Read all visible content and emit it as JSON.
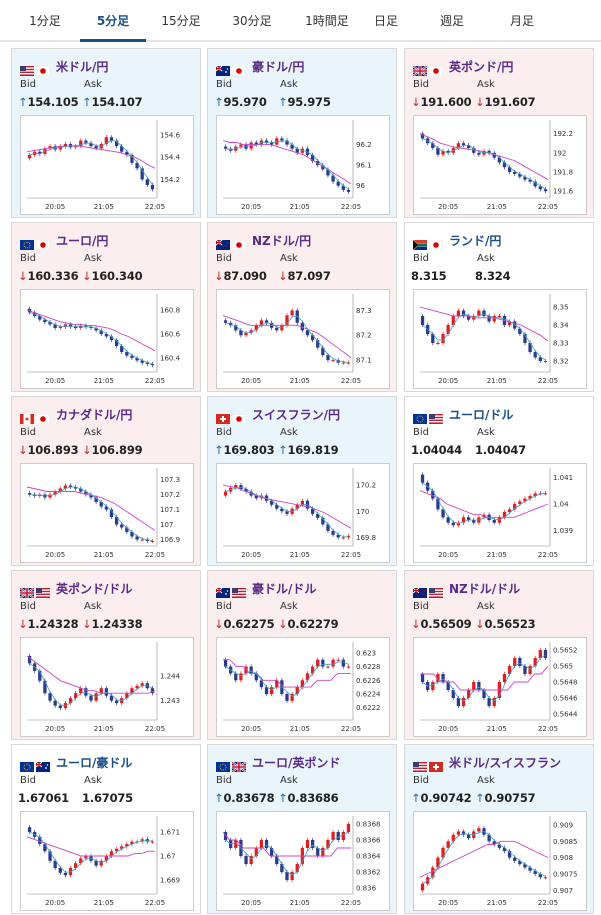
{
  "tabs": [
    {
      "label": "1分足",
      "active": false
    },
    {
      "label": "5分足",
      "active": true
    },
    {
      "label": "15分足",
      "active": false
    },
    {
      "label": "30分足",
      "active": false
    },
    {
      "label": "1時間足",
      "active": false
    },
    {
      "label": "日足",
      "active": false
    },
    {
      "label": "週足",
      "active": false
    },
    {
      "label": "月足",
      "active": false
    }
  ],
  "labels": {
    "bid": "Bid",
    "ask": "Ask"
  },
  "colors": {
    "up_arrow": "#1a6fb3",
    "down_arrow": "#cc2222",
    "up_card": "#eaf4fb",
    "down_card": "#fbeeee",
    "candle_up": "#e02020",
    "candle_down": "#2a3a8c",
    "ma_line": "#cc44cc",
    "signal_line": "#3aa0c8"
  },
  "cards": [
    {
      "pair": "米ドル/円",
      "flag": "us-jp-flag",
      "trend": "up",
      "bid": "154.105",
      "ask": "154.107",
      "chart": {
        "x_ticks": [
          "20:05",
          "21:05",
          "22:05"
        ],
        "y_ticks": [
          "154.6",
          "154.4",
          "154.2"
        ],
        "ylim": [
          154.05,
          154.7
        ],
        "close": [
          154.42,
          154.45,
          154.43,
          154.48,
          154.5,
          154.47,
          154.5,
          154.52,
          154.49,
          154.5,
          154.55,
          154.53,
          154.5,
          154.48,
          154.52,
          154.58,
          154.55,
          154.5,
          154.45,
          154.42,
          154.35,
          154.3,
          154.2,
          154.15,
          154.11
        ],
        "ma": [
          154.45,
          154.46,
          154.47,
          154.48,
          154.49,
          154.5,
          154.5,
          154.5,
          154.5,
          154.49,
          154.48,
          154.47,
          154.46,
          154.45,
          154.44,
          154.42,
          154.4,
          154.37,
          154.33,
          154.3
        ]
      }
    },
    {
      "pair": "豪ドル/円",
      "flag": "au-jp-flag",
      "trend": "up",
      "bid": "95.970",
      "ask": "95.975",
      "chart": {
        "x_ticks": [
          "20:05",
          "21:05",
          "22:05"
        ],
        "y_ticks": [
          "96.2",
          "96.1",
          "96"
        ],
        "ylim": [
          95.95,
          96.3
        ],
        "close": [
          96.18,
          96.17,
          96.19,
          96.2,
          96.18,
          96.21,
          96.2,
          96.22,
          96.21,
          96.2,
          96.23,
          96.22,
          96.2,
          96.18,
          96.16,
          96.18,
          96.15,
          96.12,
          96.1,
          96.08,
          96.05,
          96.02,
          96.0,
          95.98,
          95.97
        ],
        "ma": [
          96.22,
          96.21,
          96.21,
          96.2,
          96.2,
          96.2,
          96.2,
          96.2,
          96.19,
          96.18,
          96.17,
          96.16,
          96.15,
          96.13,
          96.11,
          96.09,
          96.07,
          96.05,
          96.03,
          96.01
        ]
      }
    },
    {
      "pair": "英ポンド/円",
      "flag": "gb-jp-flag",
      "trend": "down",
      "bid": "191.600",
      "ask": "191.607",
      "chart": {
        "x_ticks": [
          "20:05",
          "21:05",
          "22:05"
        ],
        "y_ticks": [
          "192.2",
          "192",
          "191.8",
          "191.6"
        ],
        "ylim": [
          191.55,
          192.3
        ],
        "close": [
          192.15,
          192.1,
          192.05,
          191.98,
          192.02,
          192.0,
          192.05,
          192.1,
          192.08,
          192.05,
          192.0,
          191.98,
          192.02,
          192.0,
          191.95,
          191.9,
          191.85,
          191.8,
          191.78,
          191.75,
          191.72,
          191.7,
          191.65,
          191.62,
          191.6
        ],
        "ma": [
          192.2,
          192.17,
          192.14,
          192.1,
          192.08,
          192.06,
          192.05,
          192.04,
          192.03,
          192.02,
          192.0,
          191.98,
          191.96,
          191.94,
          191.92,
          191.88,
          191.84,
          191.8,
          191.76,
          191.72
        ]
      }
    },
    {
      "pair": "ユーロ/円",
      "flag": "eu-jp-flag",
      "trend": "down",
      "bid": "160.336",
      "ask": "160.340",
      "chart": {
        "x_ticks": [
          "20:05",
          "21:05",
          "22:05"
        ],
        "y_ticks": [
          "160.8",
          "160.6",
          "160.4"
        ],
        "ylim": [
          160.3,
          160.9
        ],
        "close": [
          160.78,
          160.75,
          160.72,
          160.7,
          160.68,
          160.65,
          160.66,
          160.68,
          160.66,
          160.65,
          160.67,
          160.66,
          160.65,
          160.63,
          160.6,
          160.58,
          160.55,
          160.5,
          160.45,
          160.42,
          160.4,
          160.38,
          160.36,
          160.35,
          160.34
        ],
        "ma": [
          160.8,
          160.78,
          160.76,
          160.74,
          160.72,
          160.7,
          160.69,
          160.68,
          160.68,
          160.67,
          160.67,
          160.66,
          160.65,
          160.63,
          160.6,
          160.58,
          160.55,
          160.52,
          160.49,
          160.46
        ]
      }
    },
    {
      "pair": "NZドル/円",
      "flag": "nz-jp-flag",
      "trend": "down",
      "bid": "87.090",
      "ask": "87.097",
      "chart": {
        "x_ticks": [
          "20:05",
          "21:05",
          "22:05"
        ],
        "y_ticks": [
          "87.3",
          "87.2",
          "87.1"
        ],
        "ylim": [
          87.06,
          87.35
        ],
        "close": [
          87.25,
          87.24,
          87.22,
          87.2,
          87.21,
          87.22,
          87.24,
          87.26,
          87.25,
          87.23,
          87.22,
          87.24,
          87.28,
          87.3,
          87.25,
          87.22,
          87.2,
          87.18,
          87.15,
          87.12,
          87.1,
          87.1,
          87.09,
          87.09,
          87.09
        ],
        "ma": [
          87.28,
          87.27,
          87.26,
          87.25,
          87.24,
          87.24,
          87.24,
          87.24,
          87.24,
          87.24,
          87.24,
          87.24,
          87.23,
          87.22,
          87.21,
          87.19,
          87.17,
          87.15,
          87.13,
          87.11
        ]
      }
    },
    {
      "pair": "ランド/円",
      "flag": "za-jp-flag",
      "trend": "flat",
      "bid": "8.315",
      "ask": "8.324",
      "chart": {
        "x_ticks": [
          "20:05",
          "21:05",
          "22:05"
        ],
        "y_ticks": [
          "8.35",
          "8.34",
          "8.33",
          "8.32"
        ],
        "ylim": [
          8.315,
          8.355
        ],
        "close": [
          8.34,
          8.335,
          8.33,
          8.33,
          8.335,
          8.34,
          8.345,
          8.348,
          8.345,
          8.343,
          8.345,
          8.348,
          8.345,
          8.342,
          8.345,
          8.345,
          8.34,
          8.342,
          8.338,
          8.335,
          8.33,
          8.325,
          8.322,
          8.32,
          8.32
        ],
        "ma": [
          8.35,
          8.349,
          8.348,
          8.347,
          8.346,
          8.345,
          8.345,
          8.345,
          8.344,
          8.344,
          8.344,
          8.344,
          8.343,
          8.342,
          8.341,
          8.34,
          8.338,
          8.336,
          8.334,
          8.331
        ]
      }
    },
    {
      "pair": "カナダドル/円",
      "flag": "ca-jp-flag",
      "trend": "down",
      "bid": "106.893",
      "ask": "106.899",
      "chart": {
        "x_ticks": [
          "20:05",
          "21:05",
          "22:05"
        ],
        "y_ticks": [
          "107.3",
          "107.2",
          "107.1",
          "107",
          "106.9"
        ],
        "ylim": [
          106.87,
          107.35
        ],
        "close": [
          107.2,
          107.19,
          107.2,
          107.18,
          107.2,
          107.22,
          107.24,
          107.26,
          107.25,
          107.24,
          107.22,
          107.2,
          107.18,
          107.15,
          107.12,
          107.1,
          107.05,
          107.0,
          106.98,
          106.95,
          106.92,
          106.9,
          106.9,
          106.89,
          106.89
        ],
        "ma": [
          107.25,
          107.24,
          107.23,
          107.22,
          107.22,
          107.22,
          107.22,
          107.22,
          107.21,
          107.2,
          107.19,
          107.18,
          107.16,
          107.14,
          107.11,
          107.08,
          107.05,
          107.02,
          106.99,
          106.96
        ]
      }
    },
    {
      "pair": "スイスフラン/円",
      "flag": "ch-jp-flag",
      "trend": "up",
      "bid": "169.803",
      "ask": "169.819",
      "chart": {
        "x_ticks": [
          "20:05",
          "21:05",
          "22:05"
        ],
        "y_ticks": [
          "170.2",
          "170",
          "169.8"
        ],
        "ylim": [
          169.75,
          170.3
        ],
        "close": [
          170.15,
          170.18,
          170.2,
          170.17,
          170.15,
          170.12,
          170.1,
          170.12,
          170.08,
          170.05,
          170.02,
          170.0,
          169.98,
          170.02,
          170.05,
          170.08,
          170.02,
          169.98,
          169.95,
          169.9,
          169.85,
          169.82,
          169.8,
          169.8,
          169.81
        ],
        "ma": [
          170.2,
          170.19,
          170.18,
          170.16,
          170.14,
          170.12,
          170.1,
          170.09,
          170.08,
          170.07,
          170.06,
          170.05,
          170.04,
          170.03,
          170.01,
          169.99,
          169.96,
          169.93,
          169.9,
          169.87
        ]
      }
    },
    {
      "pair": "ユーロ/ドル",
      "flag": "eu-us-flag",
      "trend": "flat",
      "bid": "1.04044",
      "ask": "1.04047",
      "chart": {
        "x_ticks": [
          "20:05",
          "21:05",
          "22:05"
        ],
        "y_ticks": [
          "1.041",
          "1.04",
          "1.039"
        ],
        "ylim": [
          1.0385,
          1.0412
        ],
        "close": [
          1.0408,
          1.0405,
          1.0402,
          1.0398,
          1.0395,
          1.0393,
          1.0392,
          1.0393,
          1.0395,
          1.0394,
          1.0393,
          1.0395,
          1.0396,
          1.0394,
          1.0393,
          1.0395,
          1.0397,
          1.0398,
          1.04,
          1.0401,
          1.0402,
          1.0403,
          1.0404,
          1.0404,
          1.0404
        ],
        "ma": [
          1.0405,
          1.0404,
          1.0403,
          1.0402,
          1.04,
          1.0399,
          1.0398,
          1.0397,
          1.0396,
          1.0396,
          1.0395,
          1.0395,
          1.0395,
          1.0395,
          1.0395,
          1.0396,
          1.0397,
          1.0398,
          1.0399,
          1.04
        ]
      }
    },
    {
      "pair": "英ポンド/ドル",
      "flag": "gb-us-flag",
      "trend": "down",
      "bid": "1.24328",
      "ask": "1.24338",
      "chart": {
        "x_ticks": [
          "20:05",
          "21:05",
          "22:05"
        ],
        "y_ticks": [
          "1.244",
          "1.243"
        ],
        "ylim": [
          1.2423,
          1.2452
        ],
        "close": [
          1.2445,
          1.2442,
          1.2438,
          1.2433,
          1.243,
          1.2428,
          1.2427,
          1.2429,
          1.2431,
          1.2433,
          1.2435,
          1.2432,
          1.243,
          1.2433,
          1.2435,
          1.2432,
          1.243,
          1.2429,
          1.2431,
          1.2433,
          1.2435,
          1.2436,
          1.2437,
          1.2435,
          1.2433
        ],
        "ma": [
          1.2448,
          1.2446,
          1.2444,
          1.2442,
          1.244,
          1.2438,
          1.2437,
          1.2436,
          1.2435,
          1.2434,
          1.2434,
          1.2433,
          1.2433,
          1.2433,
          1.2433,
          1.2433,
          1.2433,
          1.2433,
          1.2433,
          1.2434
        ]
      }
    },
    {
      "pair": "豪ドル/ドル",
      "flag": "au-us-flag",
      "trend": "down",
      "bid": "0.62275",
      "ask": "0.62279",
      "chart": {
        "x_ticks": [
          "20:05",
          "21:05",
          "22:05"
        ],
        "y_ticks": [
          "0.623",
          "0.6228",
          "0.6226",
          "0.6224",
          "0.6222"
        ],
        "ylim": [
          0.62205,
          0.6231
        ],
        "close": [
          0.6228,
          0.6227,
          0.6226,
          0.6227,
          0.6228,
          0.6227,
          0.6226,
          0.6225,
          0.6224,
          0.6225,
          0.6226,
          0.6224,
          0.6223,
          0.6224,
          0.6225,
          0.6226,
          0.6227,
          0.6228,
          0.6229,
          0.6228,
          0.6228,
          0.6229,
          0.6229,
          0.6228,
          0.6228
        ],
        "ma": [
          0.6229,
          0.6229,
          0.6228,
          0.6228,
          0.6227,
          0.6227,
          0.6226,
          0.6226,
          0.6226,
          0.6225,
          0.6225,
          0.6225,
          0.6225,
          0.6225,
          0.6226,
          0.6226,
          0.6226,
          0.6227,
          0.6227,
          0.6227
        ]
      }
    },
    {
      "pair": "NZドル/ドル",
      "flag": "nz-us-flag",
      "trend": "down",
      "bid": "0.56509",
      "ask": "0.56523",
      "chart": {
        "x_ticks": [
          "20:05",
          "21:05",
          "22:05"
        ],
        "y_ticks": [
          "0.5652",
          "0.565",
          "0.5648",
          "0.5646",
          "0.5644"
        ],
        "ylim": [
          0.56435,
          0.56525
        ],
        "close": [
          0.5648,
          0.5647,
          0.5648,
          0.5649,
          0.5648,
          0.5647,
          0.5646,
          0.5645,
          0.5646,
          0.5647,
          0.5648,
          0.5647,
          0.5646,
          0.5645,
          0.5646,
          0.5648,
          0.5649,
          0.565,
          0.5651,
          0.565,
          0.5649,
          0.565,
          0.5651,
          0.5652,
          0.5651
        ],
        "ma": [
          0.5649,
          0.5649,
          0.5649,
          0.5648,
          0.5648,
          0.5648,
          0.5647,
          0.5647,
          0.5647,
          0.5647,
          0.5647,
          0.5647,
          0.5647,
          0.5647,
          0.5648,
          0.5648,
          0.5648,
          0.5649,
          0.5649,
          0.565
        ]
      }
    },
    {
      "pair": "ユーロ/豪ドル",
      "flag": "eu-au-flag",
      "trend": "flat",
      "bid": "1.67061",
      "ask": "1.67075",
      "chart": {
        "x_ticks": [
          "20:05",
          "21:05",
          "22:05"
        ],
        "y_ticks": [
          "1.671",
          "1.67",
          "1.669"
        ],
        "ylim": [
          1.6685,
          1.6715
        ],
        "close": [
          1.671,
          1.6708,
          1.6705,
          1.6702,
          1.6698,
          1.6695,
          1.6693,
          1.6692,
          1.6695,
          1.6697,
          1.6699,
          1.67,
          1.6698,
          1.6696,
          1.6698,
          1.67,
          1.6702,
          1.6703,
          1.6704,
          1.6705,
          1.6706,
          1.6706,
          1.6707,
          1.6706,
          1.6706
        ],
        "ma": [
          1.6708,
          1.6707,
          1.6706,
          1.6705,
          1.6704,
          1.6703,
          1.6702,
          1.6701,
          1.67,
          1.67,
          1.67,
          1.67,
          1.67,
          1.67,
          1.67,
          1.67,
          1.6701,
          1.6701,
          1.6702,
          1.6702
        ]
      }
    },
    {
      "pair": "ユーロ/英ポンド",
      "flag": "eu-gb-flag",
      "trend": "up",
      "bid": "0.83678",
      "ask": "0.83686",
      "chart": {
        "x_ticks": [
          "20:05",
          "21:05",
          "22:05"
        ],
        "y_ticks": [
          "0.8368",
          "0.8366",
          "0.8364",
          "0.8362",
          "0.836"
        ],
        "ylim": [
          0.83595,
          0.83685
        ],
        "close": [
          0.8366,
          0.8365,
          0.8366,
          0.8364,
          0.8363,
          0.8364,
          0.8365,
          0.8366,
          0.8365,
          0.8364,
          0.8363,
          0.8362,
          0.8361,
          0.8362,
          0.8363,
          0.8365,
          0.8366,
          0.8365,
          0.8364,
          0.8365,
          0.8366,
          0.8367,
          0.8366,
          0.8367,
          0.8368
        ],
        "ma": [
          0.8367,
          0.8366,
          0.8366,
          0.8365,
          0.8365,
          0.8365,
          0.8365,
          0.8364,
          0.8364,
          0.8364,
          0.8364,
          0.8364,
          0.8364,
          0.8364,
          0.8364,
          0.8364,
          0.8364,
          0.8365,
          0.8365,
          0.8365
        ]
      }
    },
    {
      "pair": "米ドル/スイスフラン",
      "flag": "us-ch-flag",
      "trend": "up",
      "bid": "0.90742",
      "ask": "0.90757",
      "chart": {
        "x_ticks": [
          "20:05",
          "21:05",
          "22:05"
        ],
        "y_ticks": [
          "0.909",
          "0.9085",
          "0.908",
          "0.9075",
          "0.907"
        ],
        "ylim": [
          0.90695,
          0.90915
        ],
        "close": [
          0.9072,
          0.9074,
          0.9077,
          0.908,
          0.9083,
          0.9085,
          0.9087,
          0.9088,
          0.9087,
          0.9086,
          0.9088,
          0.9089,
          0.9087,
          0.9085,
          0.9084,
          0.9083,
          0.9082,
          0.908,
          0.9079,
          0.9078,
          0.9077,
          0.9076,
          0.9075,
          0.9074,
          0.9074
        ],
        "ma": [
          0.9074,
          0.9075,
          0.9076,
          0.9077,
          0.9078,
          0.9079,
          0.908,
          0.9081,
          0.9082,
          0.9083,
          0.9084,
          0.9084,
          0.9085,
          0.9085,
          0.9085,
          0.9084,
          0.9083,
          0.9082,
          0.9081,
          0.908
        ]
      }
    }
  ]
}
